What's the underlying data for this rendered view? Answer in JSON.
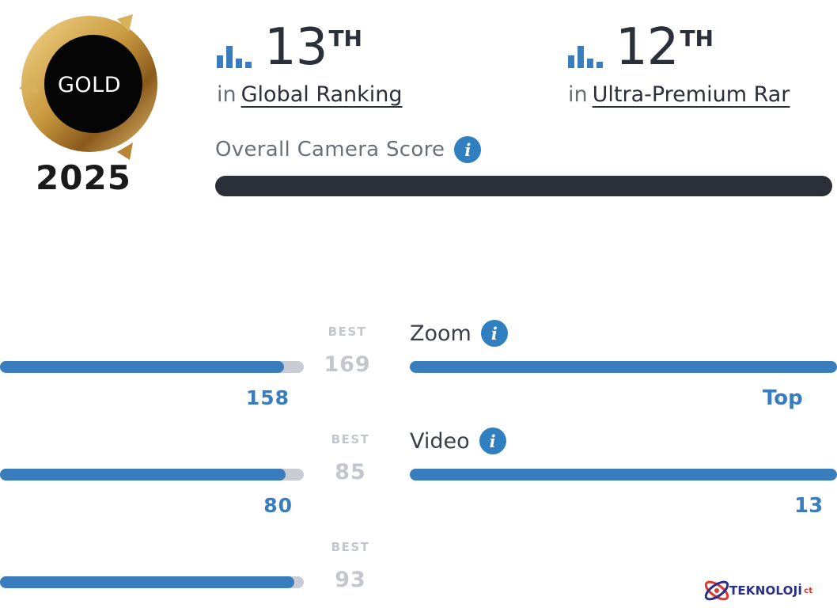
{
  "badge": {
    "label": "GOLD",
    "year": "2025"
  },
  "rankings": [
    {
      "number": "13",
      "suffix": "TH",
      "prefix": "in",
      "link": "Global Ranking"
    },
    {
      "number": "12",
      "suffix": "TH",
      "prefix": "in",
      "link": "Ultra-Premium Rar"
    }
  ],
  "overall": {
    "label": "Overall Camera Score",
    "info": "i"
  },
  "subscores": [
    {
      "best_tag": "BEST",
      "best": "169",
      "score": "158",
      "fraction": 0.935
    },
    {
      "best_tag": "BEST",
      "best": "85",
      "score": "80",
      "fraction": 0.941
    },
    {
      "best_tag": "BEST",
      "best": "93",
      "score": "",
      "fraction": 0.97
    }
  ],
  "categories": [
    {
      "label": "Zoom",
      "info": "i",
      "value": "Top"
    },
    {
      "label": "Video",
      "info": "i",
      "value": "13"
    }
  ],
  "watermark": {
    "text": "TEKNOLOJİ",
    "suffix": "ct"
  },
  "colors": {
    "accent": "#3a7dbc",
    "dark": "#2b2f3a",
    "muted": "#c3c6cd",
    "gold": "#c9a24a"
  }
}
